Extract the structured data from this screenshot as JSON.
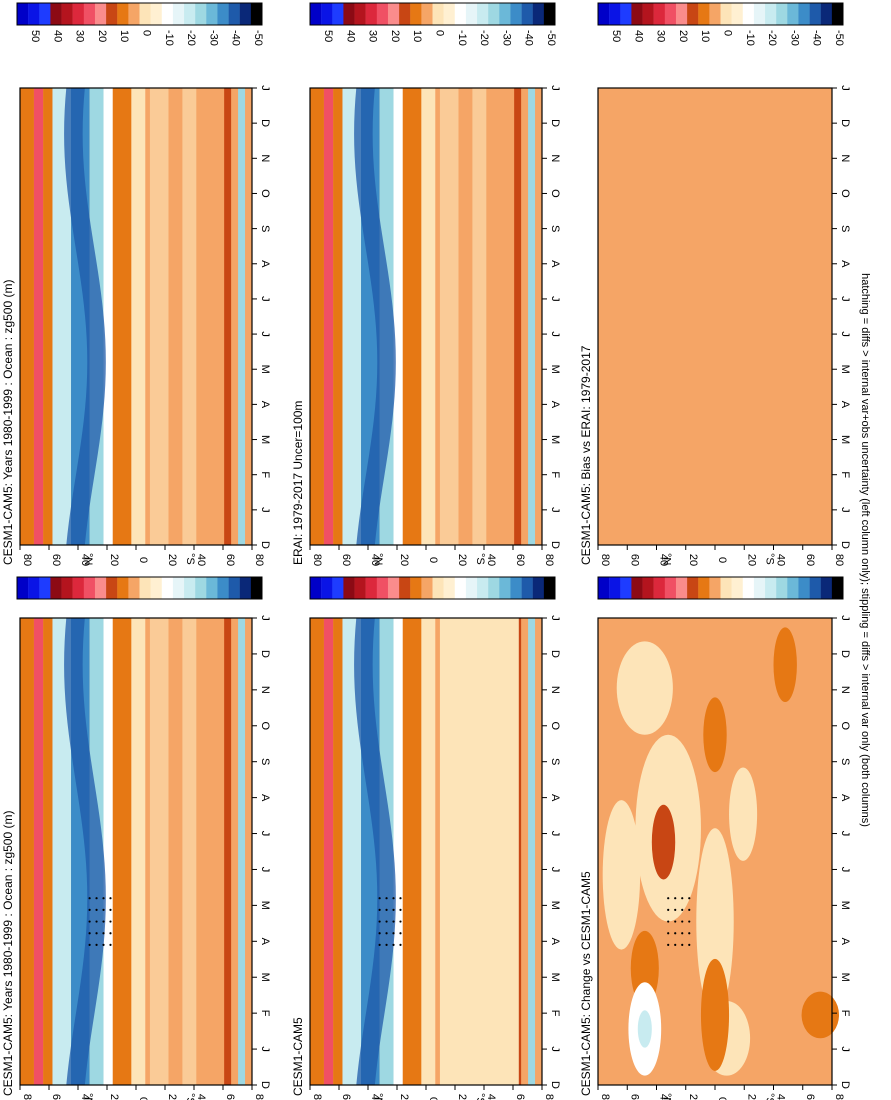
{
  "footnote": "hatching = diffs > internal var+obs uncertainty (left column only); stippling = diffs > internal var only (both columns)",
  "colorbar": {
    "tick_labels": [
      "50",
      "40",
      "30",
      "20",
      "10",
      "0",
      "-10",
      "-20",
      "-30",
      "-40",
      "-50"
    ],
    "colors": [
      "#0000c8",
      "#0a14e6",
      "#1e3cff",
      "#8c0a14",
      "#b4141e",
      "#dc283c",
      "#f05064",
      "#fa8c8c",
      "#c84614",
      "#e67814",
      "#f5a566",
      "#fde4b8",
      "#fff0d2",
      "#ffffff",
      "#e6f5f8",
      "#c8ebf0",
      "#9ed8e2",
      "#6bb8d8",
      "#3c8cc8",
      "#1e5aaa",
      "#0a2878",
      "#000000"
    ]
  },
  "chart_data": [
    {
      "type": "heatmap",
      "title": "CESM1-CAM5: Years 1980-1999 : Ocean : zg500 (m)",
      "x_tick_labels": [
        "D",
        "J",
        "F",
        "M",
        "A",
        "M",
        "J",
        "J",
        "A",
        "S",
        "O",
        "N",
        "D",
        "J"
      ],
      "y_tick_labels": [
        "80",
        "60",
        "40",
        "20",
        "0",
        "20",
        "40",
        "60",
        "80"
      ],
      "y_axis_label": "°N",
      "y_axis_label_south": "°S",
      "colorbar_range": [
        -50,
        50
      ],
      "stippling": true
    },
    {
      "type": "heatmap",
      "title": "CESM1-CAM5: Years 1980-1999 : Ocean : zg500 (m)",
      "x_tick_labels": [
        "D",
        "J",
        "F",
        "M",
        "A",
        "M",
        "J",
        "J",
        "A",
        "S",
        "O",
        "N",
        "D",
        "J"
      ],
      "y_tick_labels": [
        "80",
        "60",
        "40",
        "20",
        "0",
        "20",
        "40",
        "60",
        "80"
      ],
      "y_axis_label": "°N",
      "y_axis_label_south": "°S",
      "colorbar_range": [
        -50,
        50
      ],
      "stippling": false
    },
    {
      "type": "heatmap",
      "title": "ERAI: 1979-2017 Uncer=100m",
      "x_tick_labels": [
        "D",
        "J",
        "F",
        "M",
        "A",
        "M",
        "J",
        "J",
        "A",
        "S",
        "O",
        "N",
        "D",
        "J"
      ],
      "y_tick_labels": [
        "80",
        "60",
        "40",
        "20",
        "0",
        "20",
        "40",
        "60",
        "80"
      ],
      "y_axis_label": "°N",
      "y_axis_label_south": "°S",
      "colorbar_range": [
        -50,
        50
      ],
      "stippling": true
    },
    {
      "type": "heatmap",
      "title": "CESM1-CAM5",
      "x_tick_labels": [
        "D",
        "J",
        "F",
        "M",
        "A",
        "M",
        "J",
        "J",
        "A",
        "S",
        "O",
        "N",
        "D",
        "J"
      ],
      "y_tick_labels": [
        "80",
        "60",
        "40",
        "20",
        "0",
        "20",
        "40",
        "60",
        "80"
      ],
      "y_axis_label": "°N",
      "y_axis_label_south": "°S",
      "colorbar_range": [
        -50,
        50
      ],
      "stippling": false
    },
    {
      "type": "heatmap",
      "title": "CESM1-CAM5: Bias vs ERAI: 1979-2017",
      "x_tick_labels": [
        "D",
        "J",
        "F",
        "M",
        "A",
        "M",
        "J",
        "J",
        "A",
        "S",
        "O",
        "N",
        "D",
        "J"
      ],
      "y_tick_labels": [
        "80",
        "60",
        "40",
        "20",
        "0",
        "20",
        "40",
        "60",
        "80"
      ],
      "y_axis_label": "°N",
      "y_axis_label_south": "°S",
      "colorbar_range": [
        -50,
        50
      ],
      "stippling": true
    },
    {
      "type": "heatmap",
      "title": "CESM1-CAM5: Change vs CESM1-CAM5",
      "x_tick_labels": [
        "D",
        "J",
        "F",
        "M",
        "A",
        "M",
        "J",
        "J",
        "A",
        "S",
        "O",
        "N",
        "D",
        "J"
      ],
      "y_tick_labels": [
        "80",
        "60",
        "40",
        "20",
        "0",
        "20",
        "40",
        "60",
        "80"
      ],
      "y_axis_label": "°N",
      "y_axis_label_south": "°S",
      "colorbar_range": [
        -50,
        50
      ],
      "stippling": false
    }
  ]
}
